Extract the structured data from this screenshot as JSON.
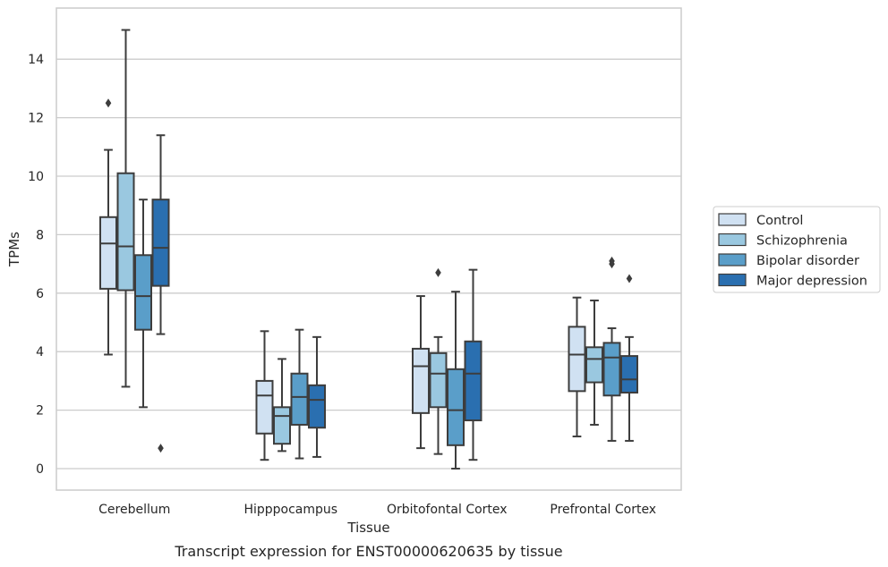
{
  "chart_data": {
    "type": "box",
    "title": "",
    "caption": "Transcript expression for ENST00000620635 by tissue",
    "xlabel": "Tissue",
    "ylabel": "TPMs",
    "ylim": [
      -0.6,
      15.8
    ],
    "yticks": [
      0,
      2,
      4,
      6,
      8,
      10,
      12,
      14
    ],
    "grid": true,
    "legend_position": "right",
    "categories": [
      "Cerebellum",
      "Hipppocampus",
      "Orbitofontal Cortex",
      "Prefrontal Cortex"
    ],
    "series": [
      {
        "name": "Control",
        "color": "#d0e1f2",
        "boxes": [
          {
            "whislo": 3.9,
            "q1": 6.15,
            "med": 7.7,
            "q3": 8.6,
            "whishi": 10.9,
            "fliers": [
              12.5
            ]
          },
          {
            "whislo": 0.3,
            "q1": 1.2,
            "med": 2.5,
            "q3": 3.0,
            "whishi": 4.7,
            "fliers": []
          },
          {
            "whislo": 0.7,
            "q1": 1.9,
            "med": 3.5,
            "q3": 4.1,
            "whishi": 5.9,
            "fliers": []
          },
          {
            "whislo": 1.1,
            "q1": 2.65,
            "med": 3.9,
            "q3": 4.85,
            "whishi": 5.85,
            "fliers": []
          }
        ]
      },
      {
        "name": "Schizophrenia",
        "color": "#9ac8e0",
        "boxes": [
          {
            "whislo": 2.8,
            "q1": 6.1,
            "med": 7.6,
            "q3": 10.1,
            "whishi": 15.0,
            "fliers": []
          },
          {
            "whislo": 0.6,
            "q1": 0.85,
            "med": 1.8,
            "q3": 2.1,
            "whishi": 3.75,
            "fliers": []
          },
          {
            "whislo": 0.5,
            "q1": 2.1,
            "med": 3.25,
            "q3": 3.95,
            "whishi": 4.5,
            "fliers": [
              6.7
            ]
          },
          {
            "whislo": 1.5,
            "q1": 2.95,
            "med": 3.75,
            "q3": 4.15,
            "whishi": 5.75,
            "fliers": []
          }
        ]
      },
      {
        "name": "Bipolar disorder",
        "color": "#5a9ec9",
        "boxes": [
          {
            "whislo": 2.1,
            "q1": 4.75,
            "med": 5.9,
            "q3": 7.3,
            "whishi": 9.2,
            "fliers": []
          },
          {
            "whislo": 0.35,
            "q1": 1.5,
            "med": 2.45,
            "q3": 3.25,
            "whishi": 4.75,
            "fliers": []
          },
          {
            "whislo": 0.0,
            "q1": 0.8,
            "med": 2.0,
            "q3": 3.4,
            "whishi": 6.05,
            "fliers": []
          },
          {
            "whislo": 0.95,
            "q1": 2.5,
            "med": 3.8,
            "q3": 4.3,
            "whishi": 4.8,
            "fliers": [
              7.0,
              7.1
            ]
          }
        ]
      },
      {
        "name": "Major depression",
        "color": "#2a6fb0",
        "boxes": [
          {
            "whislo": 4.6,
            "q1": 6.25,
            "med": 7.55,
            "q3": 9.2,
            "whishi": 11.4,
            "fliers": [
              0.7
            ]
          },
          {
            "whislo": 0.4,
            "q1": 1.4,
            "med": 2.35,
            "q3": 2.85,
            "whishi": 4.5,
            "fliers": []
          },
          {
            "whislo": 0.3,
            "q1": 1.65,
            "med": 3.25,
            "q3": 4.35,
            "whishi": 6.8,
            "fliers": []
          },
          {
            "whislo": 0.95,
            "q1": 2.6,
            "med": 3.05,
            "q3": 3.85,
            "whishi": 4.5,
            "fliers": [
              6.5
            ]
          }
        ]
      }
    ]
  }
}
